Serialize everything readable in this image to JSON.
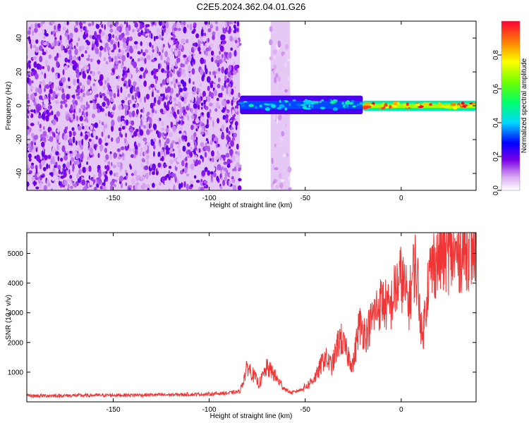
{
  "title": "C2E5.2024.362.04.01.G26",
  "chart_data": [
    {
      "type": "heatmap",
      "xlabel": "Height of straight line (km)",
      "ylabel": "Frequency (Hz)",
      "xlim": [
        -195,
        39
      ],
      "ylim": [
        -50,
        50
      ],
      "x_ticks": [
        -150,
        -100,
        -50,
        0
      ],
      "y_ticks": [
        -40,
        -20,
        0,
        20,
        40
      ],
      "colorbar": {
        "label": "Normalized spectral amplitude",
        "range": [
          0,
          1
        ],
        "ticks": [
          0.0,
          0.2,
          0.4,
          0.6,
          0.8
        ]
      },
      "regions": [
        {
          "x": [
            -195,
            -84
          ],
          "f": [
            -50,
            50
          ],
          "amplitude": 0.1,
          "pattern": "noise"
        },
        {
          "x": [
            -68,
            -58
          ],
          "f": [
            -50,
            50
          ],
          "amplitude": 0.05,
          "pattern": "noise-band"
        },
        {
          "x": [
            -84,
            -20
          ],
          "f": [
            -5,
            6
          ],
          "amplitude": 0.4,
          "pattern": "signal"
        },
        {
          "x": [
            -20,
            39
          ],
          "f": [
            -3,
            3
          ],
          "amplitude": 0.85,
          "pattern": "signal"
        }
      ],
      "grid": false
    },
    {
      "type": "line",
      "xlabel": "Height of straight line (km)",
      "ylabel": "SNR (10 * v/v)",
      "xlim": [
        -195,
        39
      ],
      "ylim": [
        0,
        5700
      ],
      "x_ticks": [
        -150,
        -100,
        -50,
        0
      ],
      "y_ticks": [
        1000,
        2000,
        3000,
        4000,
        5000
      ],
      "line_color": "#ef3535",
      "series": [
        {
          "x": [
            -195,
            -160,
            -120,
            -100,
            -90,
            -84,
            -80,
            -77,
            -74,
            -70,
            -67,
            -64,
            -60,
            -57,
            -52,
            -48,
            -44,
            -40,
            -36,
            -32,
            -28,
            -25,
            -22,
            -18,
            -14,
            -10,
            -6,
            -3,
            0,
            4,
            7,
            9,
            11,
            12,
            14,
            17,
            20,
            24,
            28,
            32,
            36,
            39
          ],
          "values": [
            200,
            220,
            240,
            260,
            300,
            350,
            1200,
            900,
            600,
            1150,
            1000,
            700,
            400,
            300,
            420,
            600,
            900,
            1500,
            1200,
            2200,
            1600,
            1250,
            2600,
            2300,
            3000,
            3400,
            3100,
            3800,
            4200,
            3300,
            4700,
            3800,
            2000,
            2800,
            4100,
            4700,
            4900,
            5000,
            4900,
            5100,
            5200,
            5300
          ]
        }
      ],
      "grid": false
    }
  ]
}
